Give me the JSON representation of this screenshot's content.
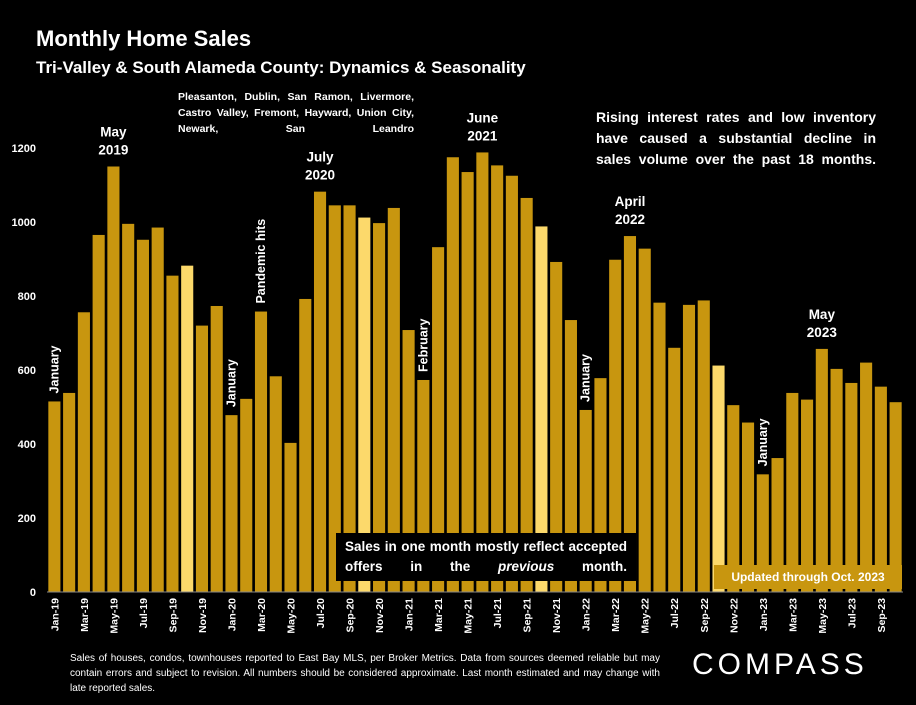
{
  "header": {
    "title": "Monthly Home Sales",
    "subtitle": "Tri-Valley & South Alameda County: Dynamics & Seasonality"
  },
  "region_text": "Pleasanton, Dublin, San Ramon, Livermore, Castro Valley, Fremont, Hayward, Union City, Newark, San Leandro",
  "note_right": "Rising interest rates and low inventory have caused a substantial decline in sales volume over the past 18 months.",
  "note_center": {
    "before": "Sales in one month mostly reflect accepted offers in the ",
    "italic": "previous",
    "after": " month."
  },
  "updated_badge": "Updated through Oct. 2023",
  "footnote": "Sales of houses, condos, townhouses reported to East Bay MLS, per Broker Metrics. Data from sources deemed reliable but may contain errors and subject to revision. All numbers should be considered approximate. Last month estimated and may change with late reported sales.",
  "logo": "COMPASS",
  "colors": {
    "bar": "#c8960f",
    "highlight_bar": "#fcd96b",
    "background": "#000000"
  },
  "chart_data": {
    "type": "bar",
    "title": "Monthly Home Sales",
    "ylim": [
      0,
      1200
    ],
    "yticks": [
      0,
      200,
      400,
      600,
      800,
      1000,
      1200
    ],
    "grid": false,
    "categories": [
      "Jan-19",
      "Feb-19",
      "Mar-19",
      "Apr-19",
      "May-19",
      "Jun-19",
      "Jul-19",
      "Aug-19",
      "Sep-19",
      "Oct-19",
      "Nov-19",
      "Dec-19",
      "Jan-20",
      "Feb-20",
      "Mar-20",
      "Apr-20",
      "May-20",
      "Jun-20",
      "Jul-20",
      "Aug-20",
      "Sep-20",
      "Oct-20",
      "Nov-20",
      "Dec-20",
      "Jan-21",
      "Feb-21",
      "Mar-21",
      "Apr-21",
      "May-21",
      "Jun-21",
      "Jul-21",
      "Aug-21",
      "Sep-21",
      "Oct-21",
      "Nov-21",
      "Dec-21",
      "Jan-22",
      "Feb-22",
      "Mar-22",
      "Apr-22",
      "May-22",
      "Jun-22",
      "Jul-22",
      "Aug-22",
      "Sep-22",
      "Oct-22",
      "Nov-22",
      "Dec-22",
      "Jan-23",
      "Feb-23",
      "Mar-23",
      "Apr-23",
      "May-23",
      "Jun-23",
      "Jul-23",
      "Aug-23",
      "Sep-23",
      "Oct-23"
    ],
    "tick_labels": [
      "Jan-19",
      "Mar-19",
      "May-19",
      "Jul-19",
      "Sep-19",
      "Nov-19",
      "Jan-20",
      "Mar-20",
      "May-20",
      "Jul-20",
      "Sep-20",
      "Nov-20",
      "Jan-21",
      "Mar-21",
      "May-21",
      "Jul-21",
      "Sep-21",
      "Nov-21",
      "Jan-22",
      "Mar-22",
      "May-22",
      "Jul-22",
      "Sep-22",
      "Nov-22",
      "Jan-23",
      "Mar-23",
      "May-23",
      "Jul-23",
      "Sep-23"
    ],
    "values": [
      515,
      538,
      756,
      965,
      1150,
      995,
      952,
      985,
      855,
      882,
      720,
      773,
      478,
      522,
      758,
      583,
      403,
      792,
      1082,
      1045,
      1045,
      1012,
      997,
      1038,
      708,
      573,
      932,
      1175,
      1135,
      1188,
      1153,
      1125,
      1065,
      988,
      892,
      735,
      492,
      578,
      898,
      962,
      928,
      782,
      660,
      776,
      788,
      612,
      505,
      458,
      318,
      362,
      538,
      520,
      657,
      603,
      565,
      620,
      555,
      513
    ],
    "highlighted_categories": [
      "Oct-19",
      "Oct-20",
      "Oct-21",
      "Oct-22"
    ],
    "annotations": [
      {
        "text": "January",
        "at": "Jan-19",
        "value": 515,
        "rotated": true
      },
      {
        "text": "May 2019",
        "at": "May-19",
        "value": 1150,
        "rotated": false
      },
      {
        "text": "January",
        "at": "Jan-20",
        "value": 478,
        "rotated": true
      },
      {
        "text": "Pandemic hits",
        "at": "Mar-20",
        "value": 758,
        "rotated": true
      },
      {
        "text": "July 2020",
        "at": "Jul-20",
        "value": 1082,
        "rotated": false
      },
      {
        "text": "February",
        "at": "Feb-21",
        "value": 573,
        "rotated": true
      },
      {
        "text": "June 2021",
        "at": "Jun-21",
        "value": 1188,
        "rotated": false
      },
      {
        "text": "January",
        "at": "Jan-22",
        "value": 492,
        "rotated": true
      },
      {
        "text": "April 2022",
        "at": "Apr-22",
        "value": 962,
        "rotated": false
      },
      {
        "text": "January",
        "at": "Jan-23",
        "value": 318,
        "rotated": true
      },
      {
        "text": "May 2023",
        "at": "May-23",
        "value": 657,
        "rotated": false
      }
    ]
  }
}
